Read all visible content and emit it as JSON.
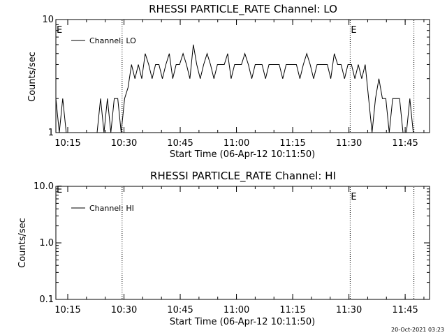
{
  "timestamp": "20-Oct-2021 03:23",
  "chart_data": [
    {
      "type": "line",
      "title": "RHESSI PARTICLE_RATE Channel: LO",
      "xlabel": "Start Time (06-Apr-12 10:11:50)",
      "ylabel": "Counts/sec",
      "yscale": "log",
      "ylim": [
        1,
        10
      ],
      "y_ticks": [
        1,
        10
      ],
      "y_tick_labels": [
        "1",
        "10"
      ],
      "xlim": [
        "10:11:50",
        "11:51:30"
      ],
      "x_ticks": [
        "10:15",
        "10:30",
        "10:45",
        "11:00",
        "11:15",
        "11:30",
        "11:45"
      ],
      "legend": {
        "placement": "top-left",
        "label": "Channel: LO"
      },
      "markers": [
        {
          "time": "10:29:30",
          "label": ""
        },
        {
          "time": "11:30:20",
          "label": "E"
        },
        {
          "time": "11:47:20",
          "label": ""
        }
      ],
      "left_marker_label": "E",
      "series": [
        {
          "name": "Channel: LO",
          "x": [
            "10:11:50",
            "10:12:45",
            "10:13:40",
            "10:14:35",
            "10:15:30",
            "10:16:25",
            "10:17:20",
            "10:18:15",
            "10:19:10",
            "10:20:05",
            "10:21:00",
            "10:21:55",
            "10:22:50",
            "10:23:45",
            "10:24:40",
            "10:25:35",
            "10:26:30",
            "10:27:25",
            "10:28:20",
            "10:29:15",
            "10:30:10",
            "10:31:05",
            "10:32:00",
            "10:32:55",
            "10:33:50",
            "10:34:45",
            "10:35:40",
            "10:36:35",
            "10:37:30",
            "10:38:25",
            "10:39:20",
            "10:40:15",
            "10:41:10",
            "10:42:05",
            "10:43:00",
            "10:43:55",
            "10:44:50",
            "10:45:45",
            "10:46:40",
            "10:47:35",
            "10:48:30",
            "10:49:25",
            "10:50:20",
            "10:51:15",
            "10:52:10",
            "10:53:05",
            "10:54:00",
            "10:54:55",
            "10:55:50",
            "10:56:45",
            "10:57:40",
            "10:58:35",
            "10:59:30",
            "11:00:25",
            "11:01:20",
            "11:02:15",
            "11:03:10",
            "11:04:05",
            "11:05:00",
            "11:05:55",
            "11:06:50",
            "11:07:45",
            "11:08:40",
            "11:09:35",
            "11:10:30",
            "11:11:25",
            "11:12:20",
            "11:13:15",
            "11:14:10",
            "11:15:05",
            "11:16:00",
            "11:16:55",
            "11:17:50",
            "11:18:45",
            "11:19:40",
            "11:20:35",
            "11:21:30",
            "11:22:25",
            "11:23:20",
            "11:24:15",
            "11:25:10",
            "11:26:05",
            "11:27:00",
            "11:27:55",
            "11:28:50",
            "11:29:45",
            "11:30:40",
            "11:31:35",
            "11:32:30",
            "11:33:25",
            "11:34:20",
            "11:35:15",
            "11:36:10",
            "11:37:05",
            "11:38:00",
            "11:38:55",
            "11:39:50",
            "11:40:45",
            "11:41:40",
            "11:42:35",
            "11:43:30",
            "11:44:25",
            "11:45:20",
            "11:46:15",
            "11:47:10"
          ],
          "y": [
            2,
            1,
            2,
            1,
            1,
            1,
            1,
            1,
            1,
            1,
            1,
            1,
            1,
            2,
            1,
            2,
            1,
            2,
            2,
            1,
            2,
            2.5,
            4,
            3,
            4,
            3,
            5,
            4,
            3,
            4,
            4,
            3,
            4,
            5,
            3,
            4,
            4,
            5,
            4,
            3,
            6,
            4,
            3,
            4,
            5,
            4,
            3,
            4,
            4,
            4,
            5,
            3,
            4,
            4,
            4,
            5,
            4,
            3,
            4,
            4,
            4,
            3,
            4,
            4,
            4,
            4,
            3,
            4,
            4,
            4,
            4,
            3,
            4,
            5,
            4,
            3,
            4,
            4,
            4,
            4,
            3,
            5,
            4,
            4,
            3,
            4,
            4,
            3,
            4,
            3,
            4,
            2,
            1,
            2,
            3,
            2,
            2,
            1,
            2,
            2,
            2,
            1,
            1,
            2,
            1
          ]
        }
      ]
    },
    {
      "type": "line",
      "title": "RHESSI PARTICLE_RATE Channel: HI",
      "xlabel": "Start Time (06-Apr-12 10:11:50)",
      "ylabel": "Counts/sec",
      "yscale": "log",
      "ylim": [
        0.1,
        10
      ],
      "y_ticks": [
        0.1,
        1,
        10
      ],
      "y_tick_labels": [
        "0.1",
        "1.0",
        "10.0"
      ],
      "xlim": [
        "10:11:50",
        "11:51:30"
      ],
      "x_ticks": [
        "10:15",
        "10:30",
        "10:45",
        "11:00",
        "11:15",
        "11:30",
        "11:45"
      ],
      "legend": {
        "placement": "top-left",
        "label": "Channel: HI"
      },
      "markers": [
        {
          "time": "10:29:30",
          "label": ""
        },
        {
          "time": "11:30:20",
          "label": "E"
        },
        {
          "time": "11:47:20",
          "label": ""
        }
      ],
      "left_marker_label": "E",
      "series": [
        {
          "name": "Channel: HI",
          "x": [],
          "y": []
        }
      ]
    }
  ]
}
